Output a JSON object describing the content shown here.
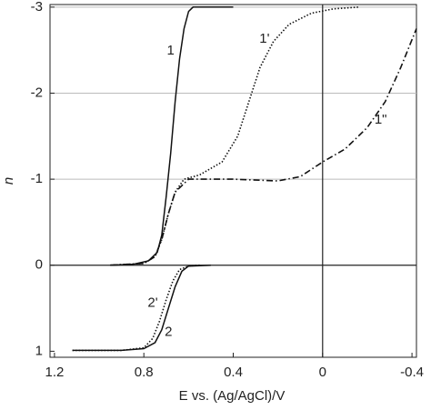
{
  "chart_data": {
    "type": "line",
    "xlabel": "E vs. (Ag/AgCl)/V",
    "ylabel": "n",
    "xlim": [
      1.22,
      -0.42
    ],
    "ylim": [
      1.07,
      -3.03
    ],
    "xticks": [
      1.2,
      0.8,
      0.4,
      0,
      -0.4
    ],
    "yticks": [
      -3,
      -2,
      -1,
      0,
      1
    ],
    "grid_lines": [
      -3,
      -2,
      -1
    ],
    "zero_lines": {
      "x": 0,
      "y": 0
    },
    "series": [
      {
        "color": "#111111",
        "style": "solid",
        "x": [
          0.95,
          0.85,
          0.78,
          0.74,
          0.72,
          0.7,
          0.68,
          0.66,
          0.64,
          0.62,
          0.6,
          0.58,
          0.4
        ],
        "values": [
          0,
          -0.01,
          -0.05,
          -0.15,
          -0.35,
          -0.8,
          -1.3,
          -1.9,
          -2.4,
          -2.75,
          -2.95,
          -3.0,
          -3.0
        ]
      },
      {
        "color": "#111111",
        "style": "dotted",
        "x": [
          0.95,
          0.8,
          0.75,
          0.72,
          0.69,
          0.66,
          0.62,
          0.55,
          0.45,
          0.38,
          0.33,
          0.28,
          0.22,
          0.15,
          0.05,
          -0.05,
          -0.16
        ],
        "values": [
          0,
          -0.02,
          -0.1,
          -0.3,
          -0.6,
          -0.85,
          -1.0,
          -1.05,
          -1.2,
          -1.5,
          -1.9,
          -2.3,
          -2.6,
          -2.8,
          -2.93,
          -2.98,
          -3.0
        ]
      },
      {
        "color": "#111111",
        "style": "dashdot",
        "x": [
          0.95,
          0.8,
          0.75,
          0.72,
          0.69,
          0.66,
          0.6,
          0.4,
          0.2,
          0.1,
          0.0,
          -0.1,
          -0.2,
          -0.28,
          -0.35,
          -0.42
        ],
        "values": [
          0,
          -0.02,
          -0.1,
          -0.3,
          -0.6,
          -0.85,
          -1.0,
          -1.0,
          -0.98,
          -1.03,
          -1.2,
          -1.35,
          -1.6,
          -1.9,
          -2.3,
          -2.75
        ]
      },
      {
        "color": "#111111",
        "style": "solid",
        "x": [
          1.12,
          0.9,
          0.8,
          0.75,
          0.72,
          0.69,
          0.66,
          0.63,
          0.6,
          0.5
        ],
        "values": [
          0.99,
          0.99,
          0.97,
          0.9,
          0.75,
          0.5,
          0.25,
          0.07,
          0.01,
          0
        ]
      },
      {
        "color": "#111111",
        "style": "dotted",
        "x": [
          1.12,
          0.9,
          0.8,
          0.76,
          0.73,
          0.7,
          0.67,
          0.64,
          0.6,
          0.55
        ],
        "values": [
          0.99,
          0.99,
          0.96,
          0.85,
          0.65,
          0.4,
          0.18,
          0.05,
          0.01,
          0
        ]
      }
    ],
    "annotations": [
      {
        "text": "1",
        "x": 0.68,
        "y": -2.49
      },
      {
        "text": "1'",
        "x": 0.26,
        "y": -2.63
      },
      {
        "text": "1\"",
        "x": -0.26,
        "y": -1.69
      },
      {
        "text": "2'",
        "x": 0.76,
        "y": 0.44
      },
      {
        "text": "2",
        "x": 0.69,
        "y": 0.78
      }
    ]
  }
}
